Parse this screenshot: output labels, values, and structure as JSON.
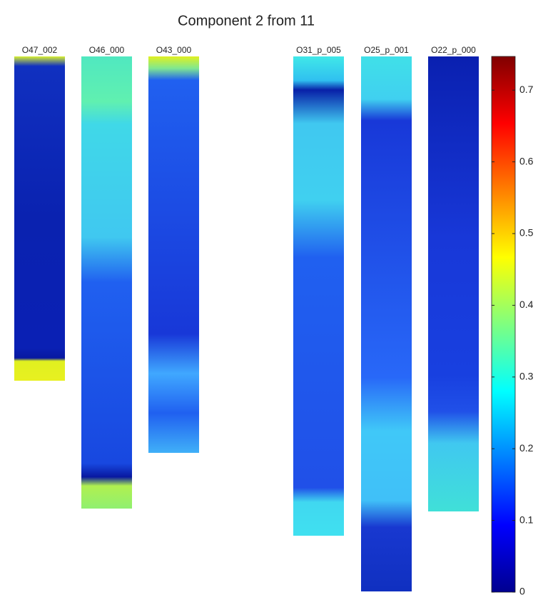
{
  "chart_data": {
    "type": "image-strips",
    "title": "Component 2 from 11",
    "panels": [
      "O47_002",
      "O46_000",
      "O43_000",
      "O31_p_005",
      "O25_p_001",
      "O22_p_000"
    ],
    "colorbar": {
      "colormap": "jet",
      "clim": [
        0,
        0.747
      ],
      "ticks": [
        0,
        0.1,
        0.2,
        0.3,
        0.4,
        0.5,
        0.6,
        0.7
      ]
    }
  }
}
